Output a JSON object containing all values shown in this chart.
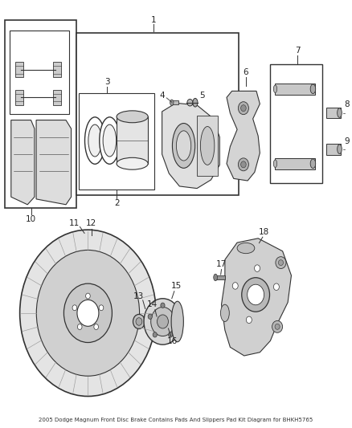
{
  "title": "2005 Dodge Magnum Front Disc Brake Contains Pads And Slippers Pad Kit Diagram for BHKH5765",
  "bg_color": "#ffffff",
  "line_color": "#333333",
  "label_color": "#222222",
  "font_size_label": 7.5,
  "font_size_title": 5.0,
  "fig_width": 4.38,
  "fig_height": 5.33,
  "dpi": 100
}
